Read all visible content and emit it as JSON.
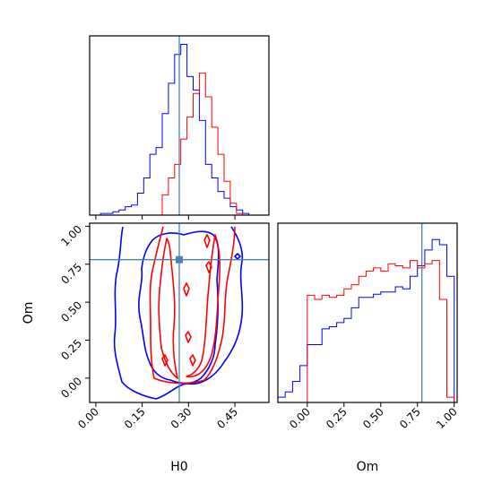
{
  "chart_data": {
    "type": "corner",
    "params": [
      "H0",
      "Om"
    ],
    "truths": {
      "H0": 0.27,
      "Om": 0.78
    },
    "colors": {
      "sample_a": "#0000ff",
      "sample_b": "#ff0000",
      "truth": "#4682b4"
    },
    "grid": false,
    "panels": {
      "h0_hist": {
        "type": "histogram",
        "xlim": [
          -0.02,
          0.56
        ],
        "bin_edges": [
          -0.005,
          0.015,
          0.035,
          0.055,
          0.075,
          0.095,
          0.115,
          0.135,
          0.155,
          0.175,
          0.195,
          0.215,
          0.235,
          0.255,
          0.275,
          0.295,
          0.315,
          0.335,
          0.355,
          0.375,
          0.395,
          0.415,
          0.435,
          0.455,
          0.475,
          0.495,
          0.515,
          0.535
        ],
        "series": [
          {
            "color": "#0000ff",
            "counts": [
              0,
              1,
              1,
              2,
              3,
              5,
              6,
              13,
              22,
              36,
              40,
              60,
              78,
              95,
              101,
              82,
              74,
              56,
              30,
              22,
              14,
              10,
              5,
              3,
              1,
              0,
              0
            ]
          },
          {
            "color": "#ff0000",
            "counts": [
              0,
              0,
              0,
              0,
              0,
              0,
              0,
              0,
              0,
              0,
              0,
              12,
              22,
              30,
              45,
              58,
              72,
              84,
              70,
              52,
              36,
              20,
              7,
              1,
              0,
              0,
              0
            ]
          }
        ]
      },
      "om_hist": {
        "type": "histogram",
        "xlim": [
          -0.2,
          1.02
        ],
        "xticks": [
          "0.00",
          "0.25",
          "0.50",
          "0.75",
          "1.00"
        ],
        "xlabel": "Om",
        "bin_edges": [
          -0.2,
          -0.15,
          -0.1,
          -0.05,
          0.0,
          0.05,
          0.1,
          0.15,
          0.2,
          0.25,
          0.3,
          0.35,
          0.4,
          0.45,
          0.5,
          0.55,
          0.6,
          0.65,
          0.7,
          0.75,
          0.8,
          0.85,
          0.9,
          0.95,
          1.0
        ],
        "series": [
          {
            "color": "#0000ff",
            "counts": [
              5,
              10,
              20,
              35,
              55,
              55,
              70,
              72,
              76,
              80,
              90,
              100,
              100,
              103,
              105,
              105,
              110,
              108,
              120,
              130,
              145,
              155,
              150,
              120
            ]
          },
          {
            "color": "#ff0000",
            "counts": [
              0,
              0,
              0,
              0,
              102,
              98,
              102,
              100,
              102,
              108,
              112,
              120,
              125,
              128,
              125,
              132,
              130,
              128,
              135,
              128,
              132,
              135,
              98,
              5
            ]
          }
        ]
      },
      "joint": {
        "type": "contour",
        "xlabel": "H0",
        "ylabel": "Om",
        "xlim": [
          -0.02,
          0.56
        ],
        "ylim": [
          -0.16,
          1.02
        ],
        "xticks": [
          "0.00",
          "0.15",
          "0.30",
          "0.45"
        ],
        "yticks": [
          "0.00",
          "0.25",
          "0.50",
          "0.75",
          "1.00"
        ]
      }
    }
  }
}
